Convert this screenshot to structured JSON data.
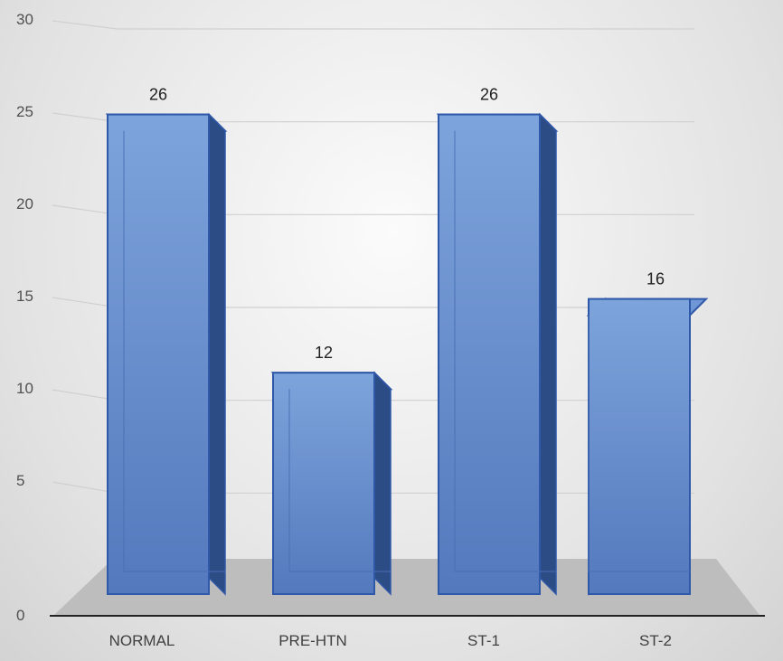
{
  "chart_data": {
    "type": "bar",
    "categories": [
      "NORMAL",
      "PRE-HTN",
      "ST-1",
      "ST-2"
    ],
    "values": [
      26,
      12,
      26,
      16
    ],
    "data_labels": [
      "26",
      "12",
      "26",
      "16"
    ],
    "ylim": [
      0,
      30
    ],
    "yticks": [
      "0",
      "5",
      "10",
      "15",
      "20",
      "25",
      "30"
    ],
    "grid": true,
    "legend": "none",
    "style": "3d-column",
    "colors": {
      "bar_front": "#5b84c8",
      "bar_edge": "#2f58a8",
      "bar_dark_side": "#2c4c86",
      "floor": "#bdbdbd",
      "axis": "#222222"
    }
  }
}
